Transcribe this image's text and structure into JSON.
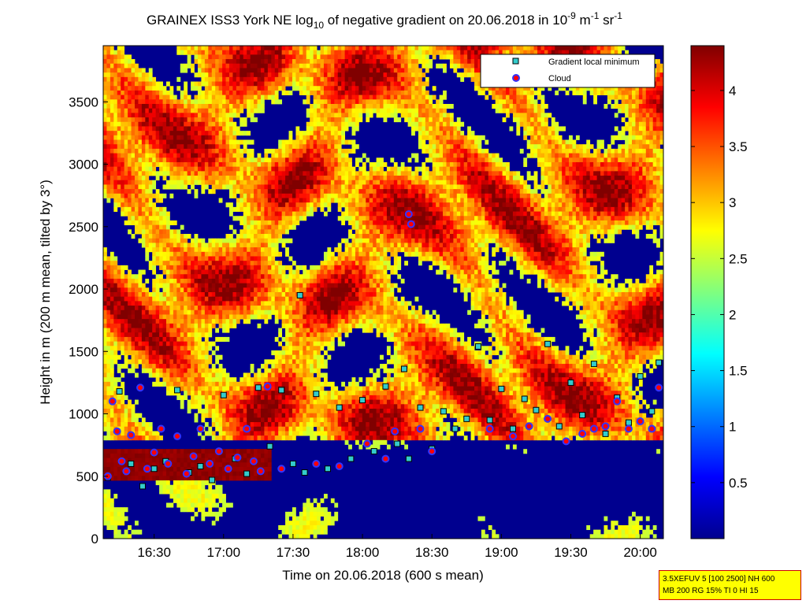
{
  "chart_data": {
    "type": "heatmap",
    "title": {
      "prefix": "GRAINEX ISS3 York NE log",
      "prefix_sub": "10",
      "middle": " of negative gradient on 20.06.2018 in 10",
      "exp1": "-9",
      "mid2": " m",
      "exp2": "-1",
      "mid3": " sr",
      "exp3": "-1"
    },
    "xlabel": "Time on 20.06.2018 (600 s mean)",
    "ylabel": "Height in m (200 m mean, tilted by 3°)",
    "xlim": [
      "16:08",
      "20:10"
    ],
    "ylim": [
      0,
      3950
    ],
    "x_ticks": [
      "16:30",
      "17:00",
      "17:30",
      "18:00",
      "18:30",
      "19:00",
      "19:30",
      "20:00"
    ],
    "y_ticks": [
      0,
      500,
      1000,
      1500,
      2000,
      2500,
      3000,
      3500
    ],
    "colorbar": {
      "min": 0,
      "max": 4.4,
      "ticks": [
        "0.5",
        "1",
        "1.5",
        "2",
        "2.5",
        "3",
        "3.5",
        "4"
      ],
      "colormap": "jet"
    },
    "legend": {
      "position": "top-right",
      "entries": [
        {
          "label": "Gradient local minimum",
          "marker": "square",
          "color": "#33cccc"
        },
        {
          "label": "Cloud",
          "marker": "circle",
          "color": "#ff0000",
          "edge": "#3333ff"
        }
      ]
    },
    "series": [
      {
        "name": "Gradient local minimum",
        "points": [
          [
            "16:10",
            490
          ],
          [
            "16:15",
            1180
          ],
          [
            "16:20",
            600
          ],
          [
            "16:25",
            420
          ],
          [
            "16:30",
            560
          ],
          [
            "16:35",
            620
          ],
          [
            "16:40",
            1190
          ],
          [
            "16:45",
            530
          ],
          [
            "16:50",
            580
          ],
          [
            "16:55",
            470
          ],
          [
            "17:00",
            1150
          ],
          [
            "17:05",
            640
          ],
          [
            "17:10",
            520
          ],
          [
            "17:15",
            1210
          ],
          [
            "17:20",
            740
          ],
          [
            "17:25",
            1190
          ],
          [
            "17:30",
            600
          ],
          [
            "17:33",
            1950
          ],
          [
            "17:35",
            530
          ],
          [
            "17:40",
            1160
          ],
          [
            "17:45",
            560
          ],
          [
            "17:50",
            1050
          ],
          [
            "17:55",
            640
          ],
          [
            "18:00",
            1110
          ],
          [
            "18:05",
            700
          ],
          [
            "18:10",
            1220
          ],
          [
            "18:15",
            760
          ],
          [
            "18:18",
            1360
          ],
          [
            "18:20",
            640
          ],
          [
            "18:25",
            1050
          ],
          [
            "18:30",
            720
          ],
          [
            "18:35",
            1020
          ],
          [
            "18:40",
            880
          ],
          [
            "18:45",
            960
          ],
          [
            "18:50",
            1540
          ],
          [
            "18:55",
            950
          ],
          [
            "19:00",
            1200
          ],
          [
            "19:05",
            880
          ],
          [
            "19:10",
            1120
          ],
          [
            "19:15",
            1030
          ],
          [
            "19:20",
            1560
          ],
          [
            "19:25",
            900
          ],
          [
            "19:30",
            1250
          ],
          [
            "19:35",
            990
          ],
          [
            "19:40",
            1400
          ],
          [
            "19:45",
            840
          ],
          [
            "19:50",
            1130
          ],
          [
            "19:55",
            930
          ],
          [
            "20:00",
            1300
          ],
          [
            "20:05",
            1020
          ],
          [
            "20:08",
            1410
          ]
        ]
      },
      {
        "name": "Cloud",
        "points": [
          [
            "16:10",
            500
          ],
          [
            "16:12",
            1100
          ],
          [
            "16:14",
            860
          ],
          [
            "16:16",
            620
          ],
          [
            "16:18",
            540
          ],
          [
            "16:20",
            830
          ],
          [
            "16:24",
            1210
          ],
          [
            "16:27",
            560
          ],
          [
            "16:30",
            690
          ],
          [
            "16:33",
            880
          ],
          [
            "16:36",
            600
          ],
          [
            "16:40",
            820
          ],
          [
            "16:44",
            520
          ],
          [
            "16:47",
            660
          ],
          [
            "16:50",
            880
          ],
          [
            "16:54",
            600
          ],
          [
            "16:58",
            700
          ],
          [
            "17:02",
            560
          ],
          [
            "17:06",
            650
          ],
          [
            "17:10",
            880
          ],
          [
            "17:13",
            620
          ],
          [
            "17:16",
            540
          ],
          [
            "17:19",
            1220
          ],
          [
            "17:25",
            560
          ],
          [
            "17:40",
            600
          ],
          [
            "17:50",
            580
          ],
          [
            "18:02",
            760
          ],
          [
            "18:10",
            640
          ],
          [
            "18:14",
            860
          ],
          [
            "18:20",
            2600
          ],
          [
            "18:21",
            2520
          ],
          [
            "18:25",
            880
          ],
          [
            "18:30",
            700
          ],
          [
            "18:55",
            880
          ],
          [
            "19:05",
            820
          ],
          [
            "19:12",
            900
          ],
          [
            "19:20",
            960
          ],
          [
            "19:28",
            780
          ],
          [
            "19:35",
            840
          ],
          [
            "19:40",
            880
          ],
          [
            "19:45",
            900
          ],
          [
            "19:50",
            1100
          ],
          [
            "19:55",
            880
          ],
          [
            "20:00",
            940
          ],
          [
            "20:05",
            880
          ],
          [
            "20:08",
            1210
          ]
        ]
      }
    ]
  },
  "info_box": {
    "line1": "3.5XEFUV 5 [100 2500] NH 600",
    "line2": "MB 200 RG 15% TI 0 HI 15"
  },
  "colors": {
    "plot_background": "#00008f",
    "frame": "#000000",
    "info_box_bg": "#ffff00",
    "info_box_border": "#cc0000"
  }
}
